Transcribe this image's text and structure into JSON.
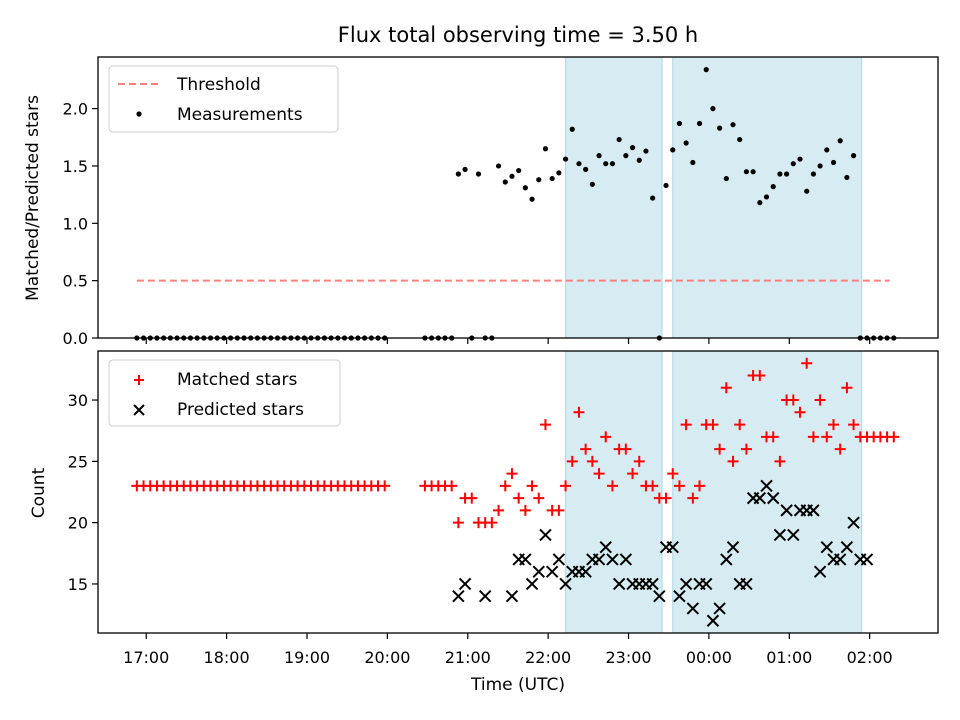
{
  "title": "Flux total observing time = 3.50 h",
  "xlabel": "Time (UTC)",
  "x_tick_labels": [
    "17:00",
    "18:00",
    "19:00",
    "20:00",
    "21:00",
    "22:00",
    "23:00",
    "00:00",
    "01:00",
    "02:00"
  ],
  "colors": {
    "threshold": "#ff7f7f",
    "measurements": "#000000",
    "matched": "#ff0000",
    "predicted": "#000000",
    "shaded_region": "#add8e6"
  },
  "chart_data": [
    {
      "type": "scatter",
      "name": "ratio",
      "ylabel": "Matched/Predicted stars",
      "x_range_hours": [
        16.4,
        26.85
      ],
      "ylim": [
        0,
        2.45
      ],
      "y_ticks": [
        0.0,
        0.5,
        1.0,
        1.5,
        2.0
      ],
      "y_tick_labels": [
        "0.0",
        "0.5",
        "1.0",
        "1.5",
        "2.0"
      ],
      "legend": {
        "position": "upper-left",
        "entries": [
          "Threshold",
          "Measurements"
        ]
      },
      "threshold": {
        "name": "Threshold",
        "y": 0.5,
        "x_range": [
          "16:53",
          "02:15"
        ]
      },
      "shaded_regions": [
        [
          "22:13",
          "23:25"
        ],
        [
          "23:33",
          "01:54"
        ]
      ],
      "series": [
        {
          "name": "Measurements",
          "x": [
            "16:53",
            "16:58",
            "17:03",
            "17:08",
            "17:13",
            "17:18",
            "17:23",
            "17:28",
            "17:33",
            "17:38",
            "17:43",
            "17:48",
            "17:53",
            "17:58",
            "18:03",
            "18:08",
            "18:13",
            "18:18",
            "18:23",
            "18:28",
            "18:33",
            "18:38",
            "18:43",
            "18:48",
            "18:53",
            "18:58",
            "19:03",
            "19:08",
            "19:13",
            "19:18",
            "19:23",
            "19:28",
            "19:33",
            "19:38",
            "19:43",
            "19:48",
            "19:53",
            "19:58",
            "20:28",
            "20:33",
            "20:38",
            "20:43",
            "20:48",
            "20:53",
            "20:58",
            "21:03",
            "21:08",
            "21:13",
            "21:18",
            "21:23",
            "21:28",
            "21:33",
            "21:38",
            "21:43",
            "21:48",
            "21:53",
            "21:58",
            "22:03",
            "22:08",
            "22:13",
            "22:18",
            "22:23",
            "22:28",
            "22:33",
            "22:38",
            "22:43",
            "22:48",
            "22:53",
            "22:58",
            "23:03",
            "23:08",
            "23:13",
            "23:18",
            "23:23",
            "23:28",
            "23:33",
            "23:38",
            "23:43",
            "23:48",
            "23:53",
            "23:58",
            "00:03",
            "00:08",
            "00:13",
            "00:18",
            "00:23",
            "00:28",
            "00:33",
            "00:38",
            "00:43",
            "00:48",
            "00:53",
            "00:58",
            "01:03",
            "01:08",
            "01:13",
            "01:18",
            "01:23",
            "01:28",
            "01:33",
            "01:38",
            "01:43",
            "01:48",
            "01:53",
            "01:58",
            "02:03",
            "02:08",
            "02:13",
            "02:18"
          ],
          "y": [
            0,
            0,
            0,
            0,
            0,
            0,
            0,
            0,
            0,
            0,
            0,
            0,
            0,
            0,
            0,
            0,
            0,
            0,
            0,
            0,
            0,
            0,
            0,
            0,
            0,
            0,
            0,
            0,
            0,
            0,
            0,
            0,
            0,
            0,
            0,
            0,
            0,
            0,
            0,
            0,
            0,
            0,
            0,
            1.43,
            1.47,
            0,
            1.43,
            0,
            0,
            1.5,
            1.36,
            1.41,
            1.46,
            1.31,
            1.21,
            1.38,
            1.65,
            1.39,
            1.44,
            1.56,
            1.82,
            1.52,
            1.47,
            1.34,
            1.59,
            1.52,
            1.52,
            1.73,
            1.59,
            1.66,
            1.55,
            1.63,
            1.22,
            0,
            1.33,
            1.64,
            1.87,
            1.7,
            1.53,
            1.87,
            2.34,
            2.0,
            1.83,
            1.39,
            1.86,
            1.73,
            1.45,
            1.45,
            1.18,
            1.23,
            1.32,
            1.43,
            1.43,
            1.52,
            1.56,
            1.28,
            1.43,
            1.5,
            1.64,
            1.53,
            1.72,
            1.4,
            1.59,
            0,
            0,
            0,
            0,
            0,
            0
          ]
        }
      ]
    },
    {
      "type": "scatter",
      "name": "counts",
      "ylabel": "Count",
      "x_range_hours": [
        16.4,
        26.85
      ],
      "ylim": [
        11,
        34
      ],
      "y_ticks": [
        15,
        20,
        25,
        30
      ],
      "y_tick_labels": [
        "15",
        "20",
        "25",
        "30"
      ],
      "legend": {
        "position": "upper-left",
        "entries": [
          "Matched stars",
          "Predicted stars"
        ]
      },
      "shaded_regions": [
        [
          "22:13",
          "23:25"
        ],
        [
          "23:33",
          "01:54"
        ]
      ],
      "series": [
        {
          "name": "Matched stars",
          "x": [
            "16:53",
            "16:58",
            "17:03",
            "17:08",
            "17:13",
            "17:18",
            "17:23",
            "17:28",
            "17:33",
            "17:38",
            "17:43",
            "17:48",
            "17:53",
            "17:58",
            "18:03",
            "18:08",
            "18:13",
            "18:18",
            "18:23",
            "18:28",
            "18:33",
            "18:38",
            "18:43",
            "18:48",
            "18:53",
            "18:58",
            "19:03",
            "19:08",
            "19:13",
            "19:18",
            "19:23",
            "19:28",
            "19:33",
            "19:38",
            "19:43",
            "19:48",
            "19:53",
            "19:58",
            "20:28",
            "20:33",
            "20:38",
            "20:43",
            "20:48",
            "20:53",
            "20:58",
            "21:03",
            "21:08",
            "21:13",
            "21:18",
            "21:23",
            "21:28",
            "21:33",
            "21:38",
            "21:43",
            "21:48",
            "21:53",
            "21:58",
            "22:03",
            "22:08",
            "22:13",
            "22:18",
            "22:23",
            "22:28",
            "22:33",
            "22:38",
            "22:43",
            "22:48",
            "22:53",
            "22:58",
            "23:03",
            "23:08",
            "23:13",
            "23:18",
            "23:23",
            "23:28",
            "23:33",
            "23:38",
            "23:43",
            "23:48",
            "23:53",
            "23:58",
            "00:03",
            "00:08",
            "00:13",
            "00:18",
            "00:23",
            "00:28",
            "00:33",
            "00:38",
            "00:43",
            "00:48",
            "00:53",
            "00:58",
            "01:03",
            "01:08",
            "01:13",
            "01:18",
            "01:23",
            "01:28",
            "01:33",
            "01:38",
            "01:43",
            "01:48",
            "01:53",
            "01:58",
            "02:03",
            "02:08",
            "02:13",
            "02:18"
          ],
          "y": [
            23,
            23,
            23,
            23,
            23,
            23,
            23,
            23,
            23,
            23,
            23,
            23,
            23,
            23,
            23,
            23,
            23,
            23,
            23,
            23,
            23,
            23,
            23,
            23,
            23,
            23,
            23,
            23,
            23,
            23,
            23,
            23,
            23,
            23,
            23,
            23,
            23,
            23,
            23,
            23,
            23,
            23,
            23,
            20,
            22,
            22,
            20,
            20,
            20,
            21,
            23,
            24,
            22,
            21,
            23,
            22,
            28,
            21,
            21,
            23,
            25,
            29,
            26,
            25,
            24,
            27,
            23,
            26,
            26,
            24,
            25,
            23,
            23,
            22,
            22,
            24,
            23,
            28,
            22,
            23,
            28,
            28,
            26,
            31,
            25,
            28,
            26,
            32,
            32,
            27,
            27,
            25,
            30,
            30,
            29,
            33,
            27,
            30,
            27,
            28,
            26,
            31,
            28,
            27,
            27,
            27,
            27,
            27,
            27
          ]
        },
        {
          "name": "Predicted stars",
          "x": [
            "20:53",
            "20:58",
            "21:13",
            "21:33",
            "21:38",
            "21:43",
            "21:48",
            "21:53",
            "21:58",
            "22:03",
            "22:08",
            "22:13",
            "22:18",
            "22:23",
            "22:28",
            "22:33",
            "22:38",
            "22:43",
            "22:48",
            "22:53",
            "22:58",
            "23:03",
            "23:08",
            "23:13",
            "23:18",
            "23:23",
            "23:28",
            "23:33",
            "23:38",
            "23:43",
            "23:48",
            "23:53",
            "23:58",
            "00:03",
            "00:08",
            "00:13",
            "00:18",
            "00:23",
            "00:28",
            "00:33",
            "00:38",
            "00:43",
            "00:48",
            "00:53",
            "00:58",
            "01:03",
            "01:08",
            "01:13",
            "01:18",
            "01:23",
            "01:28",
            "01:33",
            "01:38",
            "01:43",
            "01:48",
            "01:53",
            "01:58"
          ],
          "y": [
            14,
            15,
            14,
            14,
            17,
            17,
            15,
            16,
            19,
            16,
            17,
            15,
            16,
            16,
            16,
            17,
            17,
            18,
            17,
            15,
            17,
            15,
            15,
            15,
            15,
            14,
            18,
            18,
            14,
            15,
            13,
            15,
            15,
            12,
            13,
            17,
            18,
            15,
            15,
            22,
            22,
            23,
            22,
            19,
            21,
            19,
            21,
            21,
            21,
            16,
            18,
            17,
            17,
            18,
            20,
            17,
            17
          ]
        }
      ]
    }
  ]
}
